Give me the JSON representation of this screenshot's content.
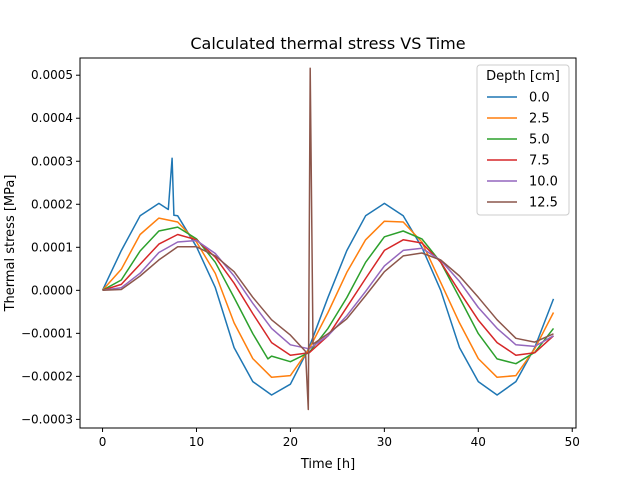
{
  "chart_data": {
    "type": "line",
    "title": "Calculated thermal stress VS Time",
    "xlabel": "Time [h]",
    "ylabel": "Thermal stress [MPa]",
    "xlim": [
      -2.4,
      50.4
    ],
    "ylim": [
      -0.00032,
      0.00054
    ],
    "x_ticks": [
      0,
      10,
      20,
      30,
      40,
      50
    ],
    "x_tick_labels": [
      "0",
      "10",
      "20",
      "30",
      "40",
      "50"
    ],
    "y_ticks": [
      -0.0003,
      -0.0002,
      -0.0001,
      0,
      0.0001,
      0.0002,
      0.0003,
      0.0004,
      0.0005
    ],
    "y_tick_labels": [
      "−0.0003",
      "−0.0002",
      "−0.0001",
      "0.0000",
      "0.0001",
      "0.0002",
      "0.0003",
      "0.0004",
      "0.0005"
    ],
    "grid": false,
    "legend": {
      "title": "Depth [cm]",
      "position": "top-right"
    },
    "series": [
      {
        "name": "0.0",
        "color": "#1f77b4",
        "x": [
          0,
          2,
          4,
          6,
          7,
          7.4,
          7.6,
          8,
          10,
          12,
          14,
          16,
          18,
          20,
          22,
          24,
          26,
          28,
          30,
          32,
          34,
          36,
          38,
          40,
          42,
          44,
          46,
          48
        ],
        "y": [
          0,
          9.23e-05,
          0.0001732,
          0.0002021,
          0.0001878,
          0.000307,
          0.0001745,
          0.0001732,
          0.0001011,
          6.3e-06,
          -0.0001331,
          -0.0002121,
          -0.0002432,
          -0.0002181,
          -0.0001325,
          -1.63e-05,
          9.23e-05,
          0.0001732,
          0.0002021,
          0.0001732,
          0.0001,
          0,
          -0.0001331,
          -0.0002121,
          -0.0002432,
          -0.0002121,
          -0.0001331,
          -2e-05
        ]
      },
      {
        "name": "2.5",
        "color": "#ff7f0e",
        "x": [
          0,
          2,
          4,
          6,
          8,
          10,
          12,
          14,
          16,
          18,
          20,
          22,
          24,
          26,
          28,
          30,
          32,
          34,
          36,
          38,
          40,
          42,
          44,
          46,
          48
        ],
        "y": [
          0,
          4.89e-05,
          0.0001298,
          0.0001679,
          0.0001587,
          0.0001123,
          3.93e-05,
          -7.56e-05,
          -0.0001587,
          -0.0002021,
          -0.0001981,
          -0.0001358,
          -5.15e-05,
          4.16e-05,
          0.0001175,
          0.0001607,
          0.0001587,
          0.0001123,
          1.85e-05,
          -7.56e-05,
          -0.0001587,
          -0.0002021,
          -0.0001981,
          -0.0001358,
          -5.15e-05
        ]
      },
      {
        "name": "5.0",
        "color": "#2ca02c",
        "x": [
          0,
          2,
          4,
          6,
          8,
          10,
          12,
          14,
          16,
          17.6,
          18,
          20,
          22,
          24,
          26,
          28,
          30,
          32,
          34,
          36,
          38,
          40,
          42,
          44,
          46,
          48
        ],
        "y": [
          0,
          2.4e-05,
          9.15e-05,
          0.0001378,
          0.000147,
          0.0001196,
          6.51e-05,
          -1.69e-05,
          -0.0001007,
          -0.0001594,
          -0.0001528,
          -0.000166,
          -0.0001442,
          -8.86e-05,
          -1.69e-05,
          6.51e-05,
          0.0001243,
          0.0001378,
          0.0001196,
          6.51e-05,
          -1.69e-05,
          -0.0001007,
          -0.0001594,
          -0.0001705,
          -0.0001442,
          -8.86e-05
        ]
      },
      {
        "name": "7.5",
        "color": "#d62728",
        "x": [
          0,
          2,
          4,
          6,
          8,
          10,
          12,
          14,
          16,
          18,
          20,
          22,
          24,
          26,
          28,
          30,
          32,
          34,
          36,
          38,
          40,
          42,
          44,
          46,
          48
        ],
        "y": [
          0,
          1.38e-05,
          6.07e-05,
          0.0001075,
          0.0001298,
          0.0001175,
          7.71e-05,
          1.66e-05,
          -5.41e-05,
          -0.0001215,
          -0.0001508,
          -0.0001453,
          -0.0001058,
          -3.93e-05,
          2.75e-05,
          9.28e-05,
          0.0001175,
          0.0001099,
          6.56e-05,
          -3.2e-06,
          -6.93e-05,
          -0.0001215,
          -0.0001508,
          -0.0001453,
          -0.0001058
        ]
      },
      {
        "name": "10.0",
        "color": "#9467bd",
        "x": [
          0,
          2,
          4,
          6,
          8,
          10,
          12,
          14,
          16,
          18,
          20,
          22,
          24,
          26,
          28,
          30,
          32,
          34,
          36,
          38,
          40,
          42,
          44,
          46,
          48
        ],
        "y": [
          0,
          6.2e-06,
          3.99e-05,
          8.79e-05,
          0.0001123,
          0.0001159,
          8.57e-05,
          3.32e-05,
          -3.01e-05,
          -8.86e-05,
          -0.0001265,
          -0.0001358,
          -0.0001058,
          -5.89e-05,
          -2.6e-06,
          5.68e-05,
          9.28e-05,
          9.76e-05,
          6.98e-05,
          2.08e-05,
          -3.99e-05,
          -8.86e-05,
          -0.0001265,
          -0.0001304,
          -0.0001058
        ]
      },
      {
        "name": "12.5",
        "color": "#8c564b",
        "x": [
          0,
          2,
          4,
          6,
          8,
          10,
          12,
          14,
          16,
          18,
          20,
          21.6,
          21.9,
          22.1,
          22.4,
          24,
          26,
          28,
          30,
          32,
          34,
          36,
          38,
          40,
          42,
          44,
          46,
          48
        ],
        "y": [
          0,
          2e-06,
          3.32e-05,
          7.08e-05,
          0.0001011,
          0.0001011,
          8.01e-05,
          4.34e-05,
          -1.61e-05,
          -6.86e-05,
          -0.000104,
          -0.000142,
          -0.000277,
          0.000516,
          -0.000125,
          -0.0001011,
          -6.61e-05,
          -1.23e-05,
          4.34e-05,
          8.01e-05,
          8.68e-05,
          7.05e-05,
          3.32e-05,
          -1.61e-05,
          -6.86e-05,
          -0.0001114,
          -0.0001204,
          -0.0001011
        ]
      }
    ]
  }
}
